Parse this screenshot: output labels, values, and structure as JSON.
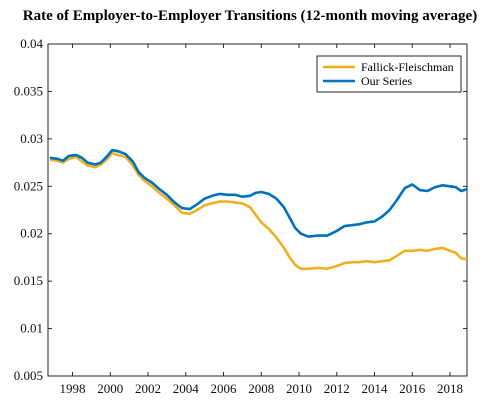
{
  "chart_data": {
    "type": "line",
    "title": "Rate of Employer-to-Employer Transitions (12-month moving average)",
    "xlabel": "",
    "ylabel": "",
    "xlim": [
      1996.7,
      2018.9
    ],
    "ylim": [
      0.005,
      0.04
    ],
    "x_ticks": [
      1998,
      2000,
      2002,
      2004,
      2006,
      2008,
      2010,
      2012,
      2014,
      2016,
      2018
    ],
    "y_ticks": [
      0.005,
      0.01,
      0.015,
      0.02,
      0.025,
      0.03,
      0.035,
      0.04
    ],
    "y_tick_labels": [
      "0.005",
      "0.01",
      "0.015",
      "0.02",
      "0.025",
      "0.03",
      "0.035",
      "0.04"
    ],
    "grid": false,
    "legend_position": "top-right",
    "series": [
      {
        "name": "Fallick-Fleischman",
        "color": "#EDB120",
        "points": [
          [
            1996.8,
            0.0278
          ],
          [
            1997.2,
            0.0277
          ],
          [
            1997.5,
            0.0275
          ],
          [
            1997.8,
            0.0279
          ],
          [
            1998.2,
            0.0281
          ],
          [
            1998.5,
            0.0276
          ],
          [
            1998.8,
            0.0272
          ],
          [
            1999.2,
            0.027
          ],
          [
            1999.5,
            0.0273
          ],
          [
            1999.8,
            0.0278
          ],
          [
            2000.1,
            0.0285
          ],
          [
            2000.4,
            0.0283
          ],
          [
            2000.8,
            0.0281
          ],
          [
            2001.2,
            0.0272
          ],
          [
            2001.5,
            0.0262
          ],
          [
            2001.8,
            0.0256
          ],
          [
            2002.2,
            0.025
          ],
          [
            2002.6,
            0.0243
          ],
          [
            2003.0,
            0.0237
          ],
          [
            2003.4,
            0.023
          ],
          [
            2003.8,
            0.0222
          ],
          [
            2004.2,
            0.0221
          ],
          [
            2004.6,
            0.0225
          ],
          [
            2005.0,
            0.023
          ],
          [
            2005.4,
            0.0232
          ],
          [
            2005.8,
            0.0234
          ],
          [
            2006.2,
            0.0234
          ],
          [
            2006.6,
            0.0233
          ],
          [
            2007.0,
            0.0232
          ],
          [
            2007.4,
            0.0228
          ],
          [
            2007.7,
            0.022
          ],
          [
            2008.0,
            0.0212
          ],
          [
            2008.4,
            0.0205
          ],
          [
            2008.8,
            0.0196
          ],
          [
            2009.2,
            0.0185
          ],
          [
            2009.5,
            0.0175
          ],
          [
            2009.8,
            0.0167
          ],
          [
            2010.1,
            0.0163
          ],
          [
            2010.5,
            0.0163
          ],
          [
            2011.0,
            0.0164
          ],
          [
            2011.5,
            0.0163
          ],
          [
            2012.0,
            0.0166
          ],
          [
            2012.4,
            0.0169
          ],
          [
            2012.8,
            0.017
          ],
          [
            2013.2,
            0.017
          ],
          [
            2013.6,
            0.0171
          ],
          [
            2014.0,
            0.017
          ],
          [
            2014.4,
            0.0171
          ],
          [
            2014.8,
            0.0172
          ],
          [
            2015.2,
            0.0177
          ],
          [
            2015.6,
            0.0182
          ],
          [
            2016.0,
            0.0182
          ],
          [
            2016.4,
            0.0183
          ],
          [
            2016.8,
            0.0182
          ],
          [
            2017.2,
            0.0184
          ],
          [
            2017.6,
            0.0185
          ],
          [
            2018.0,
            0.0182
          ],
          [
            2018.3,
            0.018
          ],
          [
            2018.6,
            0.0174
          ],
          [
            2018.9,
            0.0173
          ]
        ]
      },
      {
        "name": "Our Series",
        "color": "#0072BD",
        "points": [
          [
            1996.8,
            0.028
          ],
          [
            1997.2,
            0.0279
          ],
          [
            1997.5,
            0.0277
          ],
          [
            1997.8,
            0.0282
          ],
          [
            1998.2,
            0.0283
          ],
          [
            1998.5,
            0.028
          ],
          [
            1998.8,
            0.0275
          ],
          [
            1999.2,
            0.0273
          ],
          [
            1999.5,
            0.0275
          ],
          [
            1999.8,
            0.0281
          ],
          [
            2000.1,
            0.0288
          ],
          [
            2000.4,
            0.0287
          ],
          [
            2000.8,
            0.0284
          ],
          [
            2001.2,
            0.0276
          ],
          [
            2001.5,
            0.0265
          ],
          [
            2001.8,
            0.0259
          ],
          [
            2002.2,
            0.0254
          ],
          [
            2002.6,
            0.0247
          ],
          [
            2003.0,
            0.0241
          ],
          [
            2003.4,
            0.0233
          ],
          [
            2003.8,
            0.0227
          ],
          [
            2004.2,
            0.0226
          ],
          [
            2004.6,
            0.0231
          ],
          [
            2005.0,
            0.0237
          ],
          [
            2005.4,
            0.024
          ],
          [
            2005.8,
            0.0242
          ],
          [
            2006.2,
            0.0241
          ],
          [
            2006.6,
            0.0241
          ],
          [
            2007.0,
            0.0239
          ],
          [
            2007.4,
            0.024
          ],
          [
            2007.7,
            0.0243
          ],
          [
            2008.0,
            0.0244
          ],
          [
            2008.4,
            0.0242
          ],
          [
            2008.8,
            0.0237
          ],
          [
            2009.2,
            0.0228
          ],
          [
            2009.5,
            0.0217
          ],
          [
            2009.8,
            0.0206
          ],
          [
            2010.1,
            0.02
          ],
          [
            2010.5,
            0.0197
          ],
          [
            2011.0,
            0.0198
          ],
          [
            2011.5,
            0.0198
          ],
          [
            2012.0,
            0.0203
          ],
          [
            2012.4,
            0.0208
          ],
          [
            2012.8,
            0.0209
          ],
          [
            2013.2,
            0.021
          ],
          [
            2013.6,
            0.0212
          ],
          [
            2014.0,
            0.0213
          ],
          [
            2014.4,
            0.0218
          ],
          [
            2014.8,
            0.0225
          ],
          [
            2015.2,
            0.0236
          ],
          [
            2015.6,
            0.0248
          ],
          [
            2016.0,
            0.0252
          ],
          [
            2016.4,
            0.0246
          ],
          [
            2016.8,
            0.0245
          ],
          [
            2017.2,
            0.0249
          ],
          [
            2017.6,
            0.0251
          ],
          [
            2018.0,
            0.025
          ],
          [
            2018.3,
            0.0249
          ],
          [
            2018.6,
            0.0245
          ],
          [
            2018.9,
            0.0247
          ]
        ]
      }
    ]
  }
}
